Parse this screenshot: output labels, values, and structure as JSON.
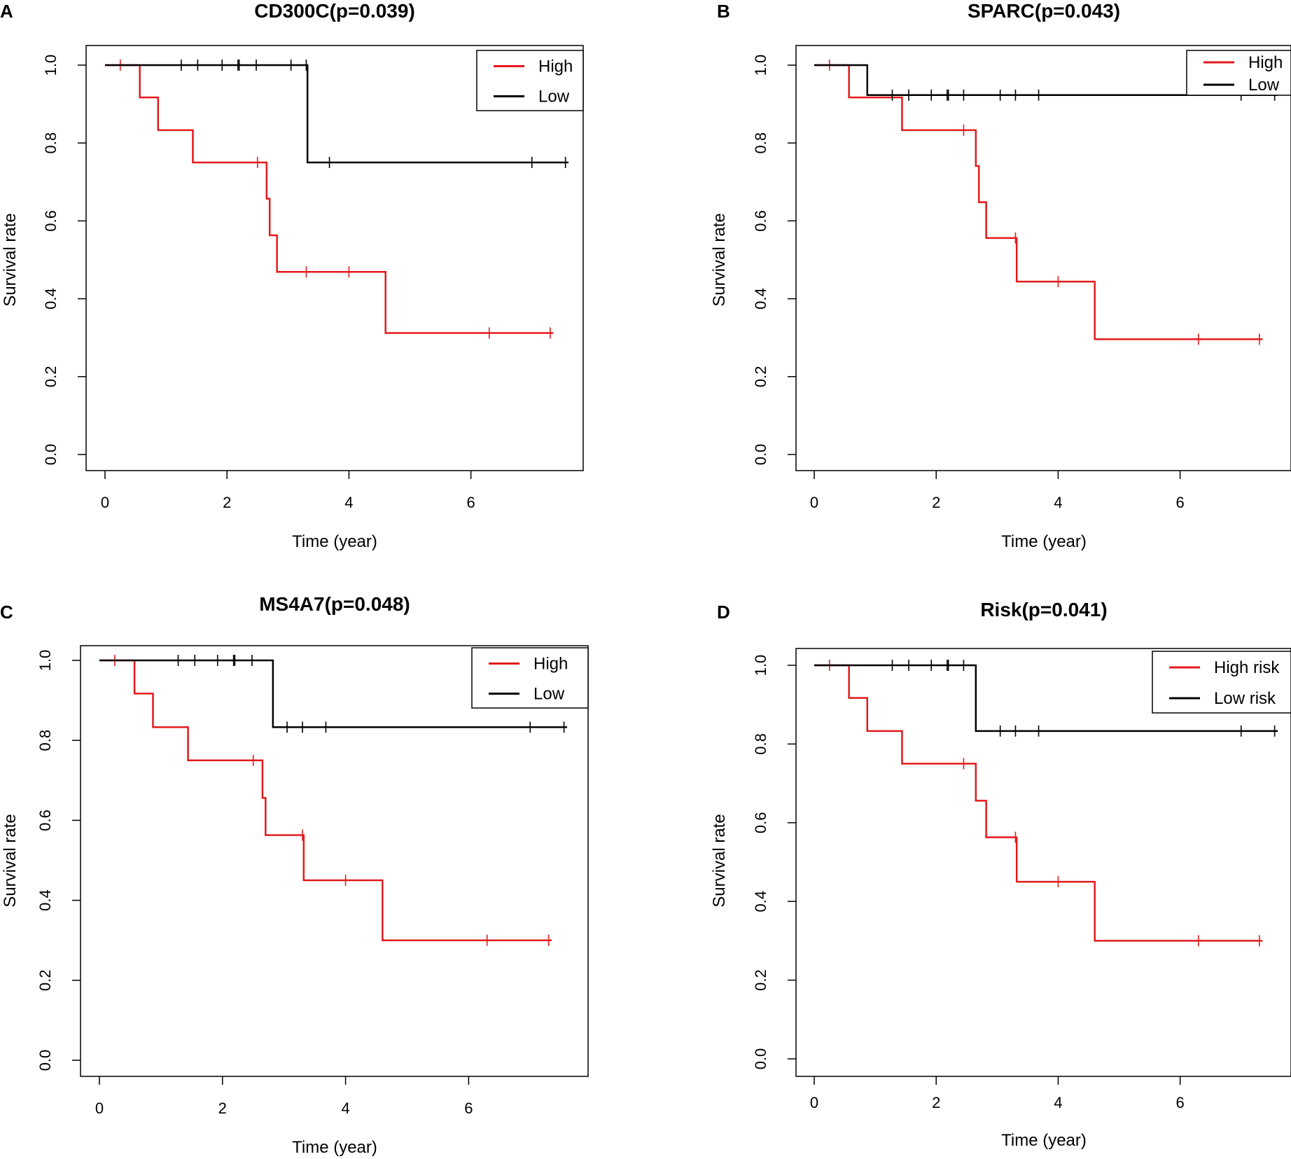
{
  "chart_data": [
    {
      "type": "line",
      "panel": "A",
      "title": "CD300C(p=0.039)",
      "xlabel": "Time (year)",
      "ylabel": "Survival rate",
      "xlim": [
        0,
        7.6
      ],
      "ylim": [
        0,
        1
      ],
      "xticks": [
        "0",
        "2",
        "4",
        "6"
      ],
      "yticks": [
        "0.0",
        "0.2",
        "0.4",
        "0.6",
        "0.8",
        "1.0"
      ],
      "legend": {
        "position": "top-right",
        "entries": [
          "High",
          "Low"
        ]
      },
      "series": [
        {
          "name": "High",
          "color": "#e31a1c",
          "steps": [
            [
              0,
              1
            ],
            [
              0.57,
              0.917
            ],
            [
              0.87,
              0.833
            ],
            [
              1.44,
              0.75
            ],
            [
              2.65,
              0.657
            ],
            [
              2.7,
              0.563
            ],
            [
              2.82,
              0.469
            ],
            [
              4.6,
              0.312
            ],
            [
              7.35,
              0.312
            ]
          ],
          "censors": [
            [
              0.25,
              1
            ],
            [
              2.5,
              0.75
            ],
            [
              3.3,
              0.469
            ],
            [
              4.0,
              0.469
            ],
            [
              6.3,
              0.312
            ],
            [
              7.3,
              0.312
            ]
          ]
        },
        {
          "name": "Low",
          "color": "#000000",
          "steps": [
            [
              0,
              1
            ],
            [
              3.32,
              0.75
            ],
            [
              7.6,
              0.75
            ]
          ],
          "censors": [
            [
              1.25,
              1
            ],
            [
              1.52,
              1
            ],
            [
              1.92,
              1
            ],
            [
              2.18,
              1
            ],
            [
              2.2,
              1
            ],
            [
              2.48,
              1
            ],
            [
              3.05,
              1
            ],
            [
              3.3,
              1
            ],
            [
              3.68,
              0.75
            ],
            [
              7.0,
              0.75
            ],
            [
              7.55,
              0.75
            ]
          ]
        }
      ]
    },
    {
      "type": "line",
      "panel": "B",
      "title": "SPARC(p=0.043)",
      "xlabel": "Time (year)",
      "ylabel": "Survival rate",
      "xlim": [
        0,
        7.6
      ],
      "ylim": [
        0,
        1
      ],
      "xticks": [
        "0",
        "2",
        "4",
        "6"
      ],
      "yticks": [
        "0.0",
        "0.2",
        "0.4",
        "0.6",
        "0.8",
        "1.0"
      ],
      "legend": {
        "position": "top-right",
        "entries": [
          "High",
          "Low"
        ]
      },
      "series": [
        {
          "name": "High",
          "color": "#e31a1c",
          "steps": [
            [
              0,
              1
            ],
            [
              0.57,
              0.917
            ],
            [
              1.44,
              0.833
            ],
            [
              2.65,
              0.741
            ],
            [
              2.7,
              0.648
            ],
            [
              2.82,
              0.556
            ],
            [
              3.32,
              0.444
            ],
            [
              4.6,
              0.296
            ],
            [
              7.35,
              0.296
            ]
          ],
          "censors": [
            [
              0.25,
              1
            ],
            [
              2.45,
              0.833
            ],
            [
              3.3,
              0.556
            ],
            [
              4.0,
              0.444
            ],
            [
              6.3,
              0.296
            ],
            [
              7.3,
              0.296
            ]
          ]
        },
        {
          "name": "Low",
          "color": "#000000",
          "steps": [
            [
              0,
              1
            ],
            [
              0.87,
              0.923
            ],
            [
              7.6,
              0.923
            ]
          ],
          "censors": [
            [
              1.28,
              0.923
            ],
            [
              1.55,
              0.923
            ],
            [
              1.92,
              0.923
            ],
            [
              2.18,
              0.923
            ],
            [
              2.2,
              0.923
            ],
            [
              2.45,
              0.923
            ],
            [
              3.05,
              0.923
            ],
            [
              3.3,
              0.923
            ],
            [
              3.68,
              0.923
            ],
            [
              7.0,
              0.923
            ],
            [
              7.55,
              0.923
            ]
          ]
        }
      ]
    },
    {
      "type": "line",
      "panel": "C",
      "title": "MS4A7(p=0.048)",
      "xlabel": "Time (year)",
      "ylabel": "Survival rate",
      "xlim": [
        0,
        7.6
      ],
      "ylim": [
        0,
        1
      ],
      "xticks": [
        "0",
        "2",
        "4",
        "6"
      ],
      "yticks": [
        "0.0",
        "0.2",
        "0.4",
        "0.6",
        "0.8",
        "1.0"
      ],
      "legend": {
        "position": "top-right",
        "entries": [
          "High",
          "Low"
        ]
      },
      "series": [
        {
          "name": "High",
          "color": "#e31a1c",
          "steps": [
            [
              0,
              1
            ],
            [
              0.57,
              0.917
            ],
            [
              0.87,
              0.833
            ],
            [
              1.44,
              0.75
            ],
            [
              2.65,
              0.656
            ],
            [
              2.7,
              0.563
            ],
            [
              3.32,
              0.45
            ],
            [
              4.6,
              0.3
            ],
            [
              7.35,
              0.3
            ]
          ],
          "censors": [
            [
              0.25,
              1
            ],
            [
              2.5,
              0.75
            ],
            [
              3.3,
              0.563
            ],
            [
              4.0,
              0.45
            ],
            [
              6.3,
              0.3
            ],
            [
              7.3,
              0.3
            ]
          ]
        },
        {
          "name": "Low",
          "color": "#000000",
          "steps": [
            [
              0,
              1
            ],
            [
              2.82,
              0.833
            ],
            [
              7.6,
              0.833
            ]
          ],
          "censors": [
            [
              1.28,
              1
            ],
            [
              1.55,
              1
            ],
            [
              1.92,
              1
            ],
            [
              2.18,
              1
            ],
            [
              2.2,
              1
            ],
            [
              2.48,
              1
            ],
            [
              3.05,
              0.833
            ],
            [
              3.3,
              0.833
            ],
            [
              3.68,
              0.833
            ],
            [
              7.0,
              0.833
            ],
            [
              7.55,
              0.833
            ]
          ]
        }
      ]
    },
    {
      "type": "line",
      "panel": "D",
      "title": "Risk(p=0.041)",
      "xlabel": "Time (year)",
      "ylabel": "Survival rate",
      "xlim": [
        0,
        7.6
      ],
      "ylim": [
        0,
        1
      ],
      "xticks": [
        "0",
        "2",
        "4",
        "6"
      ],
      "yticks": [
        "0.0",
        "0.2",
        "0.4",
        "0.6",
        "0.8",
        "1.0"
      ],
      "legend": {
        "position": "top-right",
        "entries": [
          "High risk",
          "Low risk"
        ]
      },
      "series": [
        {
          "name": "High risk",
          "color": "#e31a1c",
          "steps": [
            [
              0,
              1
            ],
            [
              0.57,
              0.917
            ],
            [
              0.87,
              0.833
            ],
            [
              1.44,
              0.75
            ],
            [
              2.65,
              0.656
            ],
            [
              2.82,
              0.563
            ],
            [
              3.32,
              0.45
            ],
            [
              4.6,
              0.3
            ],
            [
              7.35,
              0.3
            ]
          ],
          "censors": [
            [
              0.25,
              1
            ],
            [
              2.45,
              0.75
            ],
            [
              3.3,
              0.563
            ],
            [
              4.0,
              0.45
            ],
            [
              6.3,
              0.3
            ],
            [
              7.3,
              0.3
            ]
          ]
        },
        {
          "name": "Low risk",
          "color": "#000000",
          "steps": [
            [
              0,
              1
            ],
            [
              2.65,
              0.833
            ],
            [
              7.6,
              0.833
            ]
          ],
          "censors": [
            [
              1.28,
              1
            ],
            [
              1.55,
              1
            ],
            [
              1.92,
              1
            ],
            [
              2.18,
              1
            ],
            [
              2.2,
              1
            ],
            [
              2.45,
              1
            ],
            [
              3.05,
              0.833
            ],
            [
              3.3,
              0.833
            ],
            [
              3.68,
              0.833
            ],
            [
              7.0,
              0.833
            ],
            [
              7.55,
              0.833
            ]
          ]
        }
      ]
    }
  ]
}
